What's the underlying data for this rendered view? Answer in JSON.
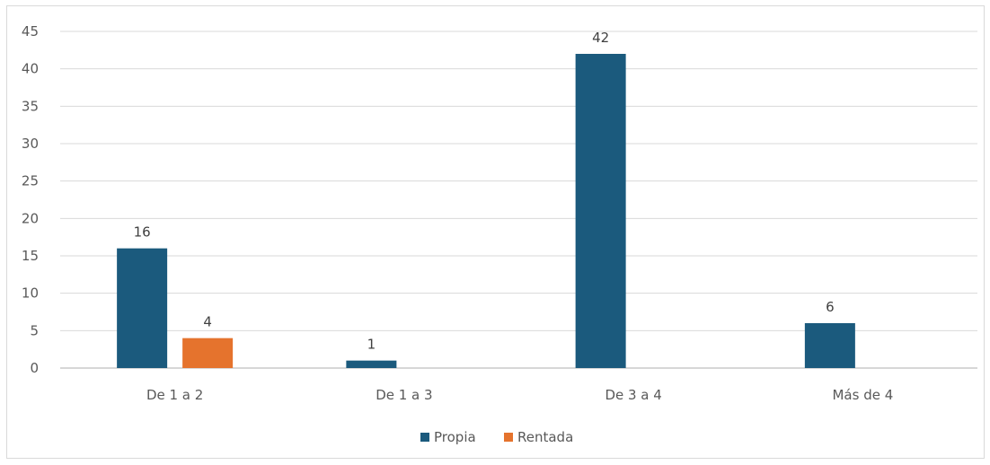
{
  "chart_data": {
    "type": "bar",
    "title": "",
    "xlabel": "",
    "ylabel": "",
    "categories": [
      "De 1 a 2",
      "De 1 a 3",
      "De 3 a 4",
      "Más de 4"
    ],
    "series": [
      {
        "name": "Propia",
        "color": "#1b5a7d",
        "values": [
          16,
          1,
          42,
          6
        ]
      },
      {
        "name": "Rentada",
        "color": "#e5732d",
        "values": [
          4,
          null,
          null,
          null
        ]
      }
    ],
    "ylim": [
      0,
      45
    ],
    "yticks": [
      0,
      5,
      10,
      15,
      20,
      25,
      30,
      35,
      40,
      45
    ],
    "grid": true,
    "legend_position": "bottom",
    "data_labels": true
  }
}
